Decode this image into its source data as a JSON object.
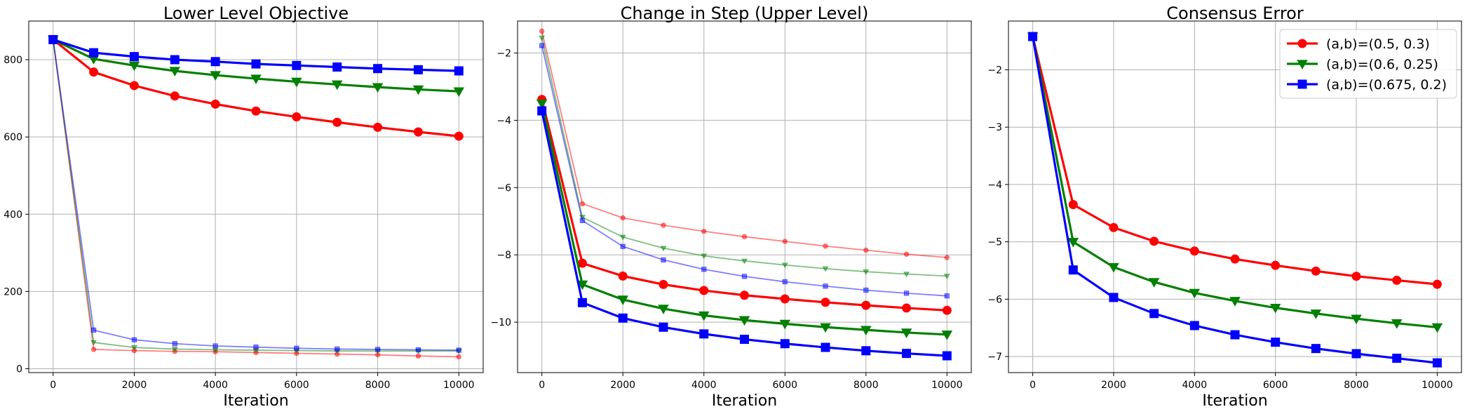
{
  "chart_data": [
    {
      "type": "line",
      "title": "Lower Level Objective",
      "xlabel": "Iteration",
      "ylabel": "",
      "xlim": [
        -600,
        10600
      ],
      "ylim": [
        -10,
        900
      ],
      "xticks": [
        0,
        2000,
        4000,
        6000,
        8000,
        10000
      ],
      "yticks": [
        0,
        200,
        400,
        600,
        800
      ],
      "grid": true,
      "x": [
        0,
        1000,
        2000,
        3000,
        4000,
        5000,
        6000,
        7000,
        8000,
        9000,
        10000
      ],
      "series": [
        {
          "name": "(a,b)=(0.5, 0.3)",
          "color": "#ff0000",
          "marker": "circle",
          "emphasis": "bold",
          "values": [
            852,
            768,
            733,
            706,
            685,
            667,
            652,
            638,
            625,
            613,
            602
          ]
        },
        {
          "name": "(a,b)=(0.6, 0.25)",
          "color": "#008000",
          "marker": "triangle-down",
          "emphasis": "bold",
          "values": [
            852,
            802,
            785,
            771,
            760,
            751,
            743,
            736,
            729,
            723,
            718
          ]
        },
        {
          "name": "(a,b)=(0.675, 0.2)",
          "color": "#0000ff",
          "marker": "square",
          "emphasis": "bold",
          "values": [
            852,
            818,
            808,
            800,
            795,
            789,
            785,
            781,
            777,
            774,
            771
          ]
        },
        {
          "color": "#ff0000",
          "marker": "circle",
          "emphasis": "faint",
          "values": [
            852,
            50,
            47,
            45,
            44,
            42,
            40,
            38,
            36,
            33,
            31
          ]
        },
        {
          "color": "#008000",
          "marker": "triangle-down",
          "emphasis": "faint",
          "values": [
            852,
            68,
            55,
            51,
            49,
            48,
            47,
            46,
            46,
            46,
            46
          ]
        },
        {
          "color": "#0000ff",
          "marker": "square",
          "emphasis": "faint",
          "values": [
            852,
            100,
            75,
            65,
            59,
            56,
            53,
            51,
            50,
            49,
            48
          ]
        }
      ]
    },
    {
      "type": "line",
      "title": "Change in Step (Upper Level)",
      "xlabel": "Iteration",
      "ylabel": "",
      "xlim": [
        -600,
        10600
      ],
      "ylim": [
        -11.5,
        -1.05
      ],
      "xticks": [
        0,
        2000,
        4000,
        6000,
        8000,
        10000
      ],
      "yticks": [
        -10,
        -8,
        -6,
        -4,
        -2
      ],
      "grid": true,
      "x": [
        0,
        1000,
        2000,
        3000,
        4000,
        5000,
        6000,
        7000,
        8000,
        9000,
        10000
      ],
      "series": [
        {
          "name": "(a,b)=(0.5, 0.3)",
          "color": "#ff0000",
          "marker": "circle",
          "emphasis": "bold",
          "values": [
            -3.38,
            -8.25,
            -8.63,
            -8.88,
            -9.06,
            -9.2,
            -9.31,
            -9.41,
            -9.5,
            -9.58,
            -9.65
          ]
        },
        {
          "name": "(a,b)=(0.6, 0.25)",
          "color": "#008000",
          "marker": "triangle-down",
          "emphasis": "bold",
          "values": [
            -3.5,
            -8.88,
            -9.33,
            -9.6,
            -9.8,
            -9.94,
            -10.05,
            -10.15,
            -10.23,
            -10.31,
            -10.37
          ]
        },
        {
          "name": "(a,b)=(0.675, 0.2)",
          "color": "#0000ff",
          "marker": "square",
          "emphasis": "bold",
          "values": [
            -3.72,
            -9.42,
            -9.88,
            -10.15,
            -10.35,
            -10.51,
            -10.64,
            -10.75,
            -10.85,
            -10.93,
            -11.0
          ]
        },
        {
          "color": "#ff0000",
          "marker": "circle",
          "emphasis": "faint",
          "values": [
            -1.35,
            -6.48,
            -6.9,
            -7.12,
            -7.3,
            -7.46,
            -7.6,
            -7.74,
            -7.86,
            -7.98,
            -8.08
          ]
        },
        {
          "color": "#008000",
          "marker": "triangle-down",
          "emphasis": "faint",
          "values": [
            -1.55,
            -6.88,
            -7.47,
            -7.8,
            -8.03,
            -8.18,
            -8.3,
            -8.41,
            -8.5,
            -8.57,
            -8.63
          ]
        },
        {
          "color": "#0000ff",
          "marker": "square",
          "emphasis": "faint",
          "values": [
            -1.78,
            -6.98,
            -7.75,
            -8.15,
            -8.43,
            -8.64,
            -8.8,
            -8.93,
            -9.05,
            -9.14,
            -9.22
          ]
        }
      ]
    },
    {
      "type": "line",
      "title": "Consensus Error",
      "xlabel": "Iteration",
      "ylabel": "",
      "xlim": [
        -600,
        10600
      ],
      "ylim": [
        -7.28,
        -1.15
      ],
      "xticks": [
        0,
        2000,
        4000,
        6000,
        8000,
        10000
      ],
      "yticks": [
        -7,
        -6,
        -5,
        -4,
        -3,
        -2
      ],
      "grid": true,
      "legend": "top-right",
      "x": [
        0,
        1000,
        2000,
        3000,
        4000,
        5000,
        6000,
        7000,
        8000,
        9000,
        10000
      ],
      "series": [
        {
          "name": "(a,b)=(0.5, 0.3)",
          "color": "#ff0000",
          "marker": "circle",
          "emphasis": "bold",
          "values": [
            -1.42,
            -4.35,
            -4.75,
            -4.99,
            -5.16,
            -5.3,
            -5.41,
            -5.51,
            -5.6,
            -5.67,
            -5.74
          ]
        },
        {
          "name": "(a,b)=(0.6, 0.25)",
          "color": "#008000",
          "marker": "triangle-down",
          "emphasis": "bold",
          "values": [
            -1.42,
            -5.0,
            -5.44,
            -5.7,
            -5.89,
            -6.03,
            -6.15,
            -6.25,
            -6.34,
            -6.42,
            -6.49
          ]
        },
        {
          "name": "(a,b)=(0.675, 0.2)",
          "color": "#0000ff",
          "marker": "square",
          "emphasis": "bold",
          "values": [
            -1.42,
            -5.49,
            -5.97,
            -6.25,
            -6.46,
            -6.62,
            -6.75,
            -6.86,
            -6.95,
            -7.03,
            -7.11
          ]
        }
      ]
    }
  ]
}
